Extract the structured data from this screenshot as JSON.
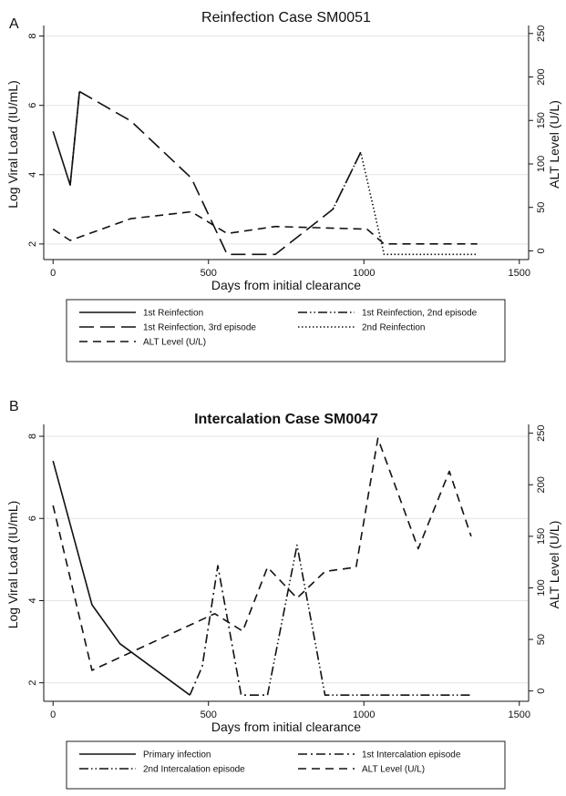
{
  "figure": {
    "label_a": "A",
    "label_b": "B"
  },
  "chart_data": [
    {
      "type": "line",
      "title": "Reinfection Case SM0051",
      "xlabel": "Days from initial clearance",
      "ylabel": "Log Viral Load (IU/mL)",
      "y2label": "ALT Level (U/L)",
      "xlim": [
        -30,
        1530
      ],
      "ylim": [
        1.55,
        8.2
      ],
      "y2lim": [
        -10,
        255
      ],
      "xticks": [
        0,
        500,
        1000,
        1500
      ],
      "yticks": [
        2,
        4,
        6,
        8
      ],
      "y2ticks": [
        0,
        50,
        100,
        150,
        200,
        250
      ],
      "grid": true,
      "legend_position": "below",
      "series": [
        {
          "name": "1st Reinfection",
          "axis": "left",
          "style": "solid",
          "x": [
            0,
            55,
            85
          ],
          "y": [
            5.25,
            3.7,
            6.4
          ]
        },
        {
          "name": "1st Reinfection, 2nd episode",
          "axis": "left",
          "style": "dash-dot-dot",
          "x": [
            55,
            85
          ],
          "y": [
            3.7,
            6.4
          ]
        },
        {
          "name": "1st Reinfection, 3rd episode",
          "axis": "left",
          "style": "long-dash",
          "x": [
            85,
            250,
            445,
            560,
            715,
            900,
            990
          ],
          "y": [
            6.4,
            5.55,
            3.9,
            1.7,
            1.7,
            3.0,
            4.65
          ]
        },
        {
          "name": "2nd Reinfection",
          "axis": "left",
          "style": "dotted",
          "x": [
            900,
            990,
            1065,
            1365
          ],
          "y": [
            3.0,
            4.65,
            1.7,
            1.7
          ]
        },
        {
          "name": "ALT Level (U/L)",
          "axis": "right",
          "style": "dashed",
          "x": [
            0,
            55,
            250,
            445,
            560,
            715,
            1010,
            1065,
            1365
          ],
          "y": [
            25,
            12,
            37,
            45,
            20,
            28,
            25,
            8,
            8
          ]
        }
      ]
    },
    {
      "type": "line",
      "title": "Intercalation Case SM0047",
      "xlabel": "Days from initial clearance",
      "ylabel": "Log Viral Load (IU/mL)",
      "y2label": "ALT Level (U/L)",
      "xlim": [
        -30,
        1530
      ],
      "ylim": [
        1.55,
        8.2
      ],
      "y2lim": [
        -10,
        255
      ],
      "xticks": [
        0,
        500,
        1000,
        1500
      ],
      "yticks": [
        2,
        4,
        6,
        8
      ],
      "y2ticks": [
        0,
        50,
        100,
        150,
        200,
        250
      ],
      "grid": true,
      "legend_position": "below",
      "series": [
        {
          "name": "Primary infection",
          "axis": "left",
          "style": "solid",
          "x": [
            0,
            125,
            215,
            440
          ],
          "y": [
            7.4,
            3.9,
            2.95,
            1.7
          ]
        },
        {
          "name": "1st Intercalation episode",
          "axis": "left",
          "style": "dash-dot",
          "x": [
            440,
            480,
            530,
            605,
            690
          ],
          "y": [
            1.7,
            2.4,
            4.85,
            1.7,
            1.7
          ]
        },
        {
          "name": "2nd Intercalation episode",
          "axis": "left",
          "style": "dash-dot-dot",
          "x": [
            690,
            785,
            875,
            1345
          ],
          "y": [
            1.7,
            5.35,
            1.7,
            1.7
          ]
        },
        {
          "name": "ALT Level (U/L)",
          "axis": "right",
          "style": "dashed",
          "x": [
            0,
            125,
            520,
            610,
            690,
            785,
            875,
            975,
            1045,
            1175,
            1275,
            1345
          ],
          "y": [
            180,
            20,
            75,
            58,
            120,
            90,
            116,
            120,
            245,
            138,
            213,
            150
          ]
        }
      ]
    }
  ],
  "legends": [
    {
      "rows": [
        [
          {
            "series": 0,
            "label": "1st Reinfection"
          },
          {
            "series": 1,
            "label": "1st Reinfection, 2nd episode"
          }
        ],
        [
          {
            "series": 2,
            "label": "1st Reinfection, 3rd episode"
          },
          {
            "series": 3,
            "label": "2nd Reinfection"
          }
        ],
        [
          {
            "series": 4,
            "label": "ALT Level (U/L)"
          }
        ]
      ]
    },
    {
      "rows": [
        [
          {
            "series": 0,
            "label": "Primary infection"
          },
          {
            "series": 1,
            "label": "1st Intercalation episode"
          }
        ],
        [
          {
            "series": 2,
            "label": "2nd Intercalation episode"
          },
          {
            "series": 3,
            "label": "ALT Level (U/L)"
          }
        ]
      ]
    }
  ],
  "colors": {
    "line": "#111111",
    "grid": "#e3e3e3",
    "legend_border": "#222222"
  }
}
